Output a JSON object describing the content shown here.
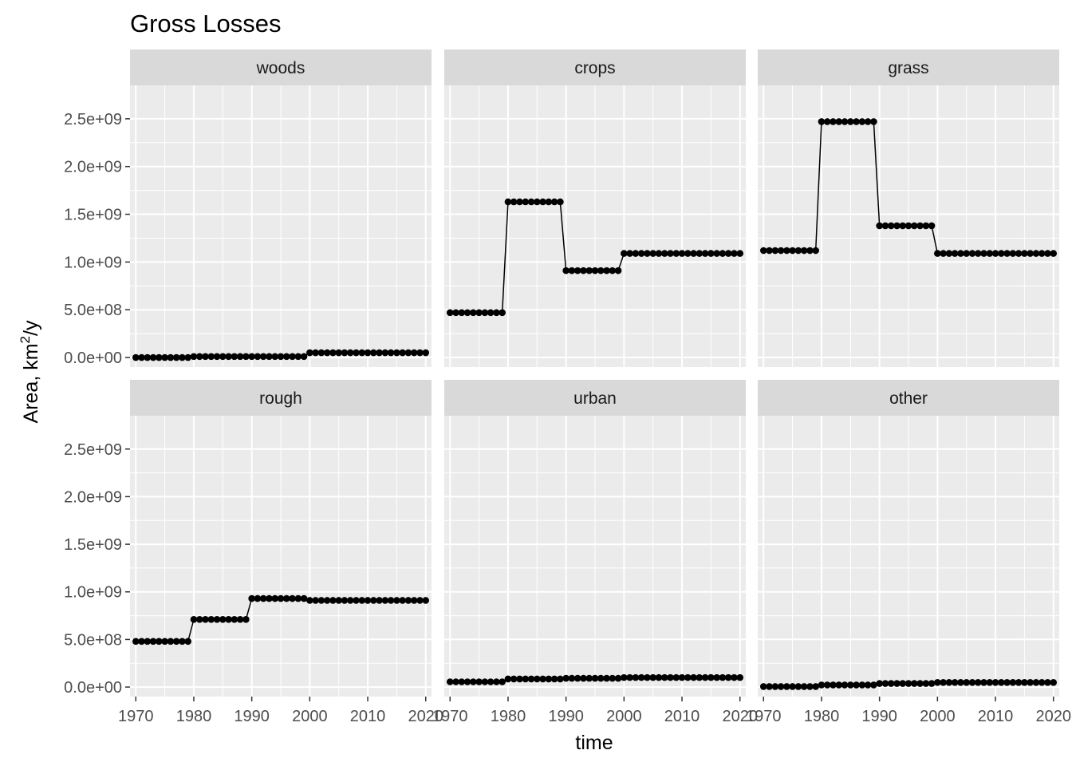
{
  "chart_data": {
    "type": "line",
    "title": "Gross Losses",
    "xlabel": "time",
    "ylabel_base": "Area,  km",
    "ylabel_superscript": "2",
    "ylabel_suffix": "/y",
    "xlim": [
      1969,
      2021
    ],
    "ylim": [
      -100000000,
      2850000000
    ],
    "x_ticks": [
      1970,
      1980,
      1990,
      2000,
      2010,
      2020
    ],
    "y_ticks": [
      0,
      500000000,
      1000000000,
      1500000000,
      2000000000,
      2500000000
    ],
    "y_tick_labels": [
      "0.0e+00",
      "5.0e+08",
      "1.0e+09",
      "1.5e+09",
      "2.0e+09",
      "2.5e+09"
    ],
    "grid": true,
    "facet_layout": "2 rows x 3 columns",
    "panels": [
      {
        "name": "woods",
        "segments": [
          {
            "from": 1970,
            "to": 1979,
            "value": 0
          },
          {
            "from": 1980,
            "to": 1999,
            "value": 10000000
          },
          {
            "from": 2000,
            "to": 2020,
            "value": 50000000
          }
        ]
      },
      {
        "name": "crops",
        "segments": [
          {
            "from": 1970,
            "to": 1979,
            "value": 470000000
          },
          {
            "from": 1980,
            "to": 1989,
            "value": 1630000000
          },
          {
            "from": 1990,
            "to": 1999,
            "value": 910000000
          },
          {
            "from": 2000,
            "to": 2020,
            "value": 1090000000
          }
        ]
      },
      {
        "name": "grass",
        "segments": [
          {
            "from": 1970,
            "to": 1979,
            "value": 1120000000
          },
          {
            "from": 1980,
            "to": 1989,
            "value": 2470000000
          },
          {
            "from": 1990,
            "to": 1999,
            "value": 1380000000
          },
          {
            "from": 2000,
            "to": 2020,
            "value": 1090000000
          }
        ]
      },
      {
        "name": "rough",
        "segments": [
          {
            "from": 1970,
            "to": 1979,
            "value": 480000000
          },
          {
            "from": 1980,
            "to": 1989,
            "value": 710000000
          },
          {
            "from": 1990,
            "to": 1999,
            "value": 930000000
          },
          {
            "from": 2000,
            "to": 2020,
            "value": 910000000
          }
        ]
      },
      {
        "name": "urban",
        "segments": [
          {
            "from": 1970,
            "to": 1979,
            "value": 55000000
          },
          {
            "from": 1980,
            "to": 1989,
            "value": 85000000
          },
          {
            "from": 1990,
            "to": 1999,
            "value": 92000000
          },
          {
            "from": 2000,
            "to": 2020,
            "value": 100000000
          }
        ]
      },
      {
        "name": "other",
        "segments": [
          {
            "from": 1970,
            "to": 1979,
            "value": 5000000
          },
          {
            "from": 1980,
            "to": 1989,
            "value": 22000000
          },
          {
            "from": 1990,
            "to": 1999,
            "value": 38000000
          },
          {
            "from": 2000,
            "to": 2020,
            "value": 48000000
          }
        ]
      }
    ]
  }
}
